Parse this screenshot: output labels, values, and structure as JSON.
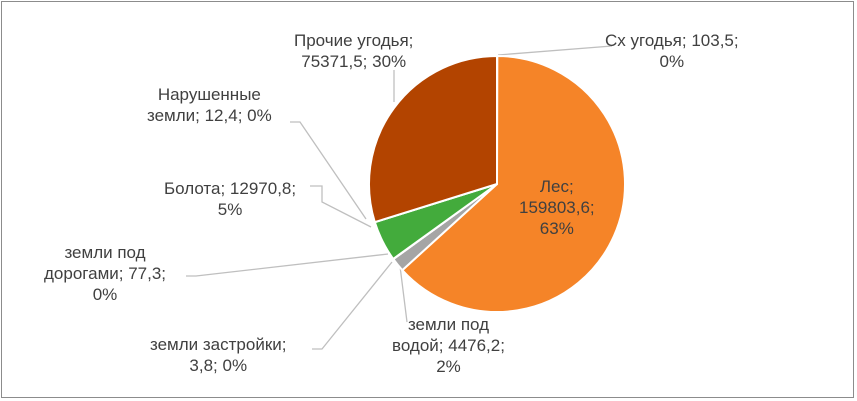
{
  "chart_data": {
    "type": "pie",
    "title": "",
    "slices": [
      {
        "label": "Сх угодья",
        "value": "103,5",
        "percent": "0%",
        "num": 103.5,
        "color": "#4472c4"
      },
      {
        "label": "Лес",
        "value": "159803,6",
        "percent": "63%",
        "num": 159803.6,
        "color": "#f58428"
      },
      {
        "label": "земли под водой",
        "value": "4476,2",
        "percent": "2%",
        "num": 4476.2,
        "color": "#a5a5a5"
      },
      {
        "label": "земли застройки",
        "value": "3,8",
        "percent": "0%",
        "num": 3.8,
        "color": "#4472c4"
      },
      {
        "label": "земли под дорогами",
        "value": "77,3",
        "percent": "0%",
        "num": 77.3,
        "color": "#264478"
      },
      {
        "label": "Болота",
        "value": "12970,8",
        "percent": "5%",
        "num": 12970.8,
        "color": "#43ab3c"
      },
      {
        "label": "Нарушенные земли",
        "value": "12,4",
        "percent": "0%",
        "num": 12.4,
        "color": "#7f7f7f"
      },
      {
        "label": "Прочие угодья",
        "value": "75371,5",
        "percent": "30%",
        "num": 75371.5,
        "color": "#b34400"
      }
    ],
    "display_labels": {
      "sx": [
        "Сх угодья; 103,5;",
        "0%"
      ],
      "les": [
        "Лес;",
        "159803,6;",
        "63%"
      ],
      "voda": [
        "земли под",
        "водой; 4476,2;",
        "2%"
      ],
      "zastr": [
        "земли застройки;",
        "3,8; 0%"
      ],
      "dorogi": [
        "земли под",
        "дорогами; 77,3;",
        "0%"
      ],
      "bolota": [
        "Болота; 12970,8;",
        "5%"
      ],
      "narush": [
        "Нарушенные",
        "земли; 12,4; 0%"
      ],
      "prochie": [
        "Прочие угодья;",
        "75371,5; 30%"
      ]
    }
  }
}
